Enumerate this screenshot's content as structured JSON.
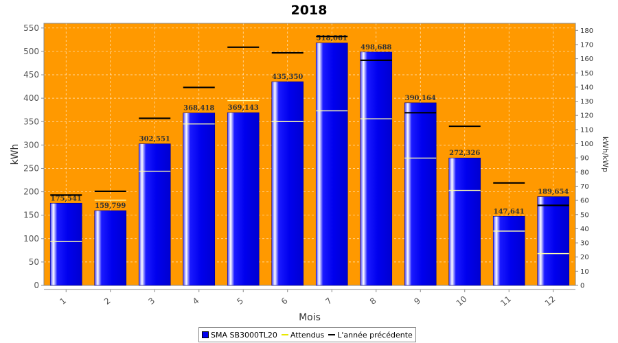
{
  "chart_data": {
    "type": "bar",
    "title": "2018",
    "xlabel": "Mois",
    "ylabel": "kWh",
    "ylabel_right": "kWh/kWp",
    "ylim": [
      0,
      560
    ],
    "ylim_right": [
      0,
      185
    ],
    "yticks": [
      0,
      50,
      100,
      150,
      200,
      250,
      300,
      350,
      400,
      450,
      500,
      550
    ],
    "yticks_right": [
      0,
      10,
      20,
      30,
      40,
      50,
      60,
      70,
      80,
      90,
      100,
      110,
      120,
      130,
      140,
      150,
      160,
      170,
      180
    ],
    "categories": [
      "1",
      "2",
      "3",
      "4",
      "5",
      "6",
      "7",
      "8",
      "9",
      "10",
      "11",
      "12"
    ],
    "grid": true,
    "legend_position": "bottom",
    "series": [
      {
        "name": "SMA SB3000TL20",
        "type": "bar",
        "values": [
          175.541,
          159.799,
          302.551,
          368.418,
          369.143,
          435.35,
          518.061,
          498.688,
          390.164,
          272.326,
          147.641,
          189.654
        ],
        "labels": [
          "175,541",
          "159,799",
          "302,551",
          "368,418",
          "369,143",
          "435,350",
          "518,061",
          "498,688",
          "390,164",
          "272,326",
          "147,641",
          "189,654"
        ],
        "color": "#0000ee"
      },
      {
        "name": "Attendus",
        "type": "marker",
        "values": [
          94,
          182,
          244,
          345,
          395,
          350,
          373,
          356,
          272,
          203,
          116,
          68
        ],
        "color": "#ffffaa"
      },
      {
        "name": "L'année précédente",
        "type": "marker",
        "values": [
          193,
          201,
          357,
          423,
          509,
          497,
          532,
          481,
          369,
          340,
          219,
          171
        ],
        "color": "#000000"
      }
    ],
    "plot_background": "#ff9900"
  }
}
